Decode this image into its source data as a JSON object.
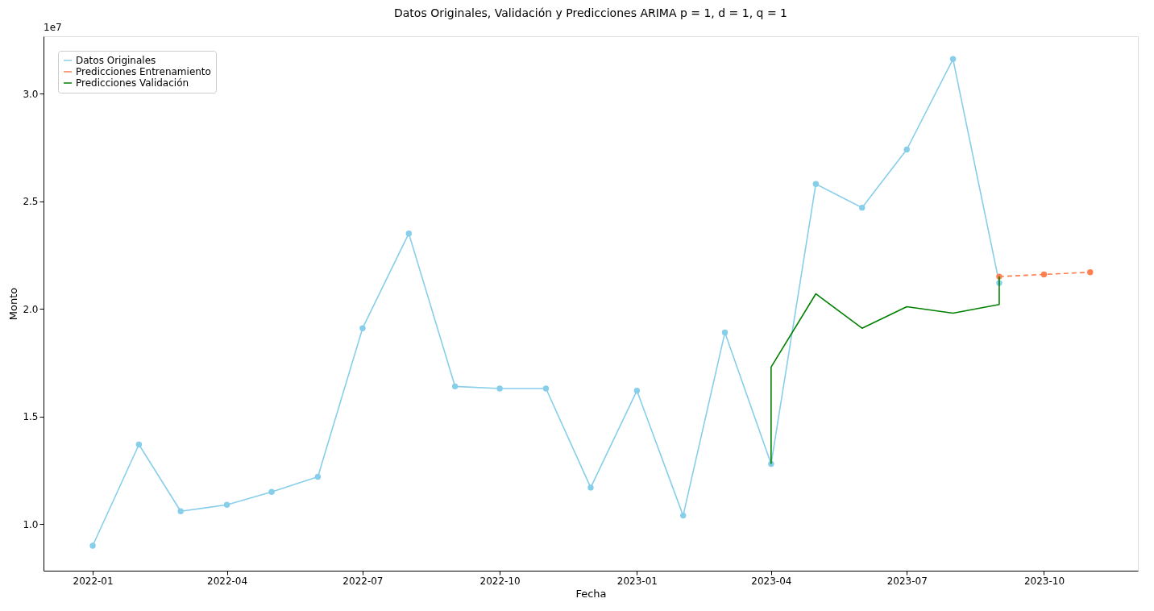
{
  "chart_data": {
    "type": "line",
    "title": "Datos Originales, Validación y Predicciones ARIMA p = 1, d = 1,  q = 1",
    "xlabel": "Fecha",
    "ylabel": "Monto",
    "annotations": [
      "1e7"
    ],
    "xlim": [
      "2021-11-29",
      "2023-12-03"
    ],
    "xticks": [
      "2022-01",
      "2022-04",
      "2022-07",
      "2022-10",
      "2023-01",
      "2023-04",
      "2023-07",
      "2023-10"
    ],
    "ylim": [
      0.784,
      3.266
    ],
    "yticks": [
      {
        "value": 1.0,
        "label": "1.0"
      },
      {
        "value": 1.5,
        "label": "1.5"
      },
      {
        "value": 2.0,
        "label": "2.0"
      },
      {
        "value": 2.5,
        "label": "2.5"
      },
      {
        "value": 3.0,
        "label": "3.0"
      }
    ],
    "grid": false,
    "legend": "top left",
    "series": [
      {
        "name": "Datos Originales",
        "color": "#87ceeb",
        "marker": "circle",
        "line_style": "solid",
        "x": [
          "2022-01",
          "2022-02",
          "2022-03",
          "2022-04",
          "2022-05",
          "2022-06",
          "2022-07",
          "2022-08",
          "2022-09",
          "2022-10",
          "2022-11",
          "2022-12",
          "2023-01",
          "2023-02",
          "2023-03",
          "2023-04",
          "2023-05",
          "2023-06",
          "2023-07",
          "2023-08",
          "2023-09"
        ],
        "values": [
          0.9,
          1.37,
          1.06,
          1.09,
          1.15,
          1.22,
          1.91,
          2.35,
          1.64,
          1.63,
          1.63,
          1.17,
          1.62,
          1.04,
          1.89,
          1.28,
          2.58,
          2.47,
          2.74,
          3.16,
          2.12
        ]
      },
      {
        "name": "Predicciones Entrenamiento",
        "color": "#ff7f50",
        "marker": "circle",
        "line_style": "dashed",
        "x": [
          "2023-09",
          "2023-10",
          "2023-11"
        ],
        "values": [
          2.15,
          2.16,
          2.17
        ]
      },
      {
        "name": "Predicciones Validación",
        "color": "#008000",
        "marker": "none",
        "line_style": "solid",
        "x": [
          "2023-04",
          "2023-04",
          "2023-05",
          "2023-06",
          "2023-07",
          "2023-08",
          "2023-09",
          "2023-09"
        ],
        "values": [
          1.28,
          1.73,
          2.07,
          1.91,
          2.01,
          1.98,
          2.02,
          2.15
        ]
      }
    ]
  }
}
